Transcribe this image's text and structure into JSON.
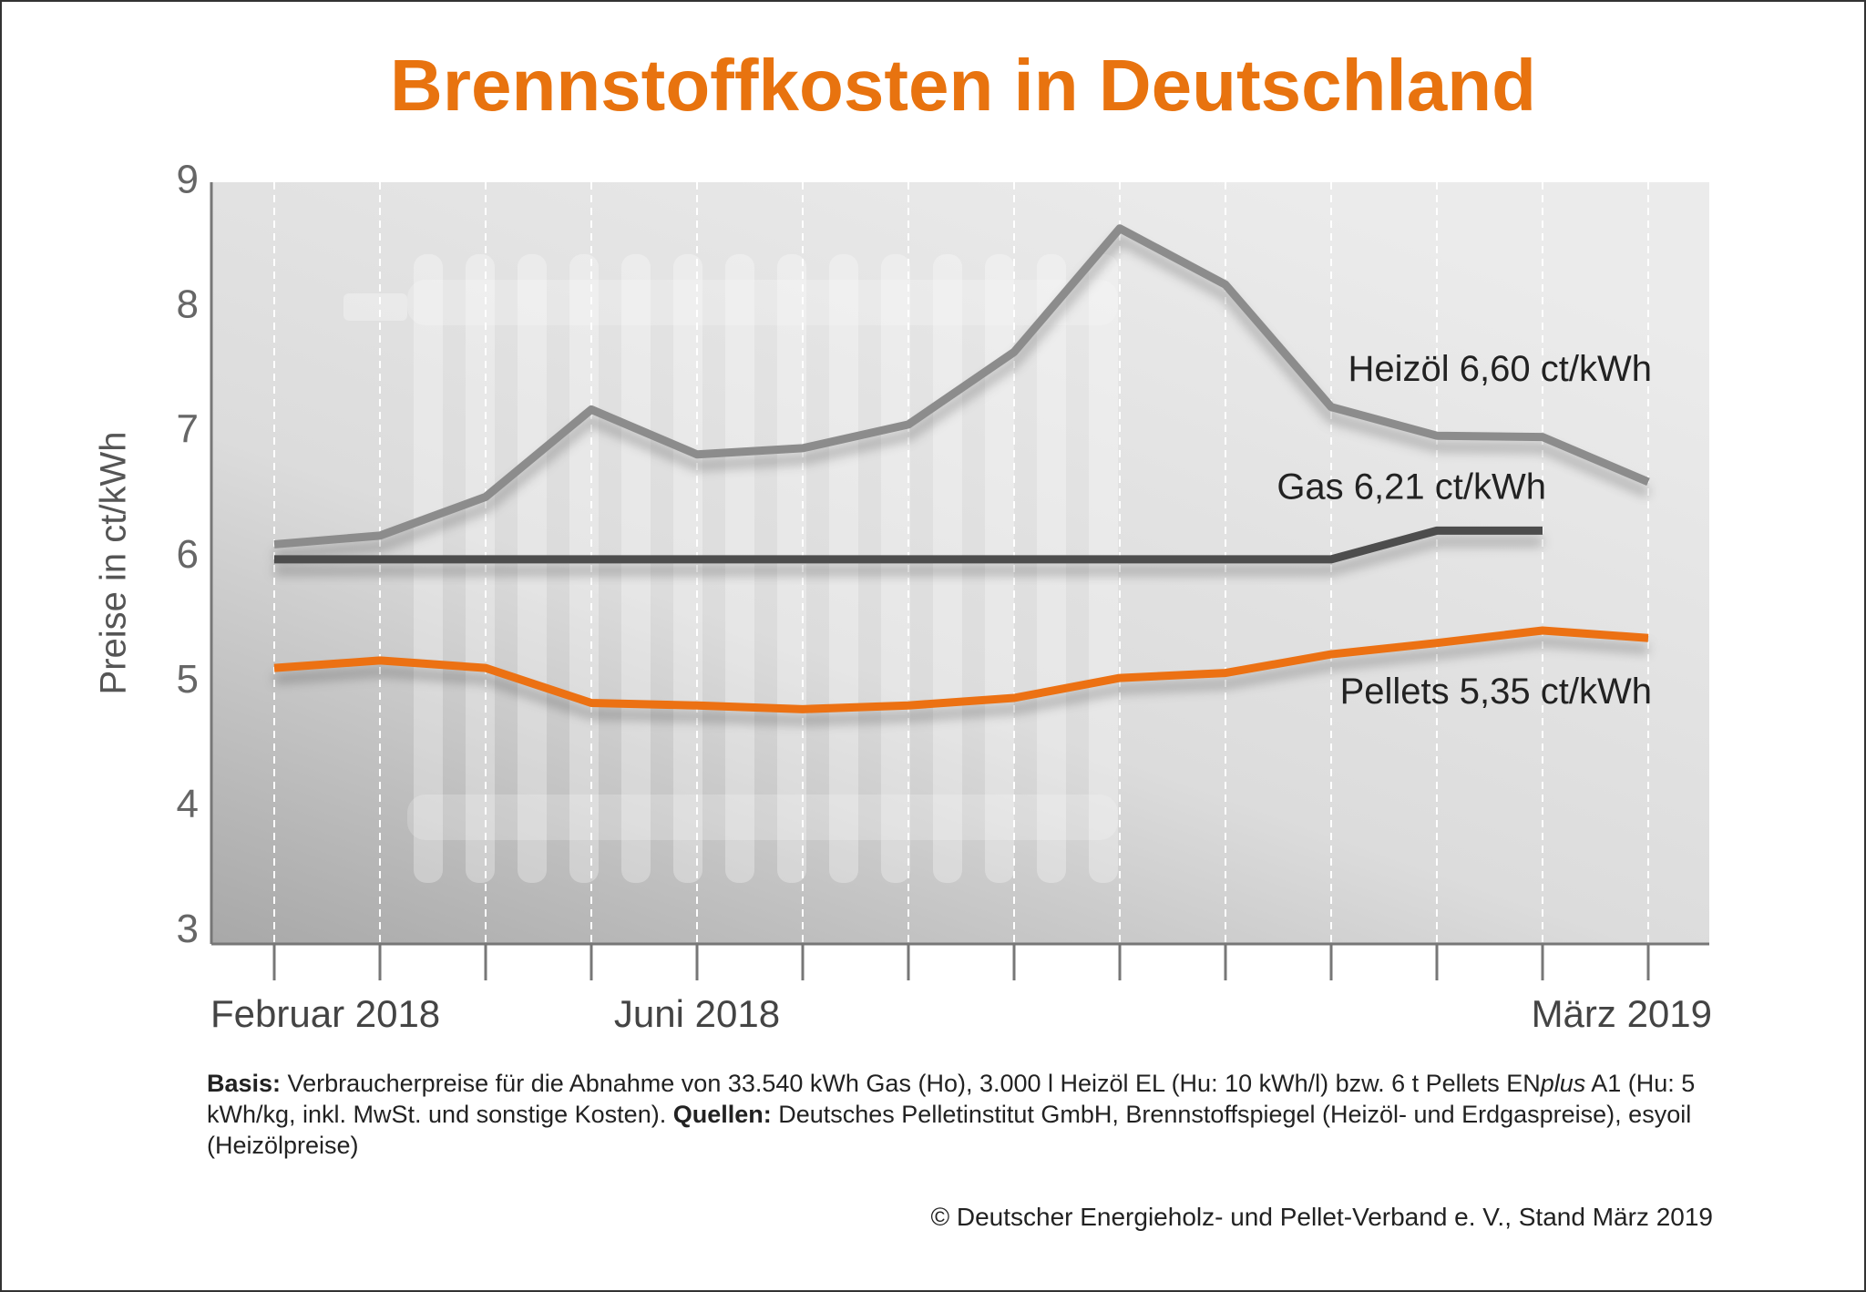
{
  "chart_data": {
    "type": "line",
    "title": "Brennstoffkosten in Deutschland",
    "y_label": "Preise in ct/kWh",
    "categories": [
      "Februar 2018",
      null,
      null,
      null,
      "Juni 2018",
      null,
      null,
      null,
      null,
      null,
      null,
      null,
      null,
      "März 2019"
    ],
    "series": [
      {
        "name": "Heizöl",
        "color": "#8c8c8c",
        "values": [
          6.1,
          6.17,
          6.48,
          7.18,
          6.82,
          6.87,
          7.06,
          7.64,
          8.63,
          8.18,
          7.2,
          6.97,
          6.96,
          6.6
        ],
        "value_labels": [
          null,
          null,
          null,
          null,
          null,
          null,
          null,
          null,
          null,
          null,
          null,
          null,
          null,
          "6,60 ct/kWh"
        ]
      },
      {
        "name": "Gas",
        "color": "#4d4d4d",
        "values": [
          5.98,
          5.98,
          5.98,
          5.98,
          5.98,
          5.98,
          5.98,
          5.98,
          5.98,
          5.98,
          5.98,
          6.21,
          6.21,
          null
        ],
        "value_labels": [
          null,
          null,
          null,
          null,
          null,
          null,
          null,
          null,
          null,
          null,
          null,
          null,
          "6,21 ct/kWh",
          null
        ]
      },
      {
        "name": "Pellets",
        "color": "#ec7113",
        "values": [
          5.11,
          5.17,
          5.11,
          4.83,
          4.81,
          4.78,
          4.81,
          4.87,
          5.03,
          5.07,
          5.22,
          5.31,
          5.41,
          5.35
        ],
        "value_labels": [
          null,
          null,
          null,
          null,
          null,
          null,
          null,
          null,
          null,
          null,
          null,
          null,
          null,
          "5,35 ct/kWh"
        ]
      }
    ],
    "ylim": [
      2.9,
      9
    ],
    "yticks": [
      3,
      4,
      5,
      6,
      7,
      8,
      9
    ],
    "grid": true
  },
  "footnote": {
    "basis_label": "Basis:",
    "basis_text": " Verbraucherpreise für die Abnahme von 33.540 kWh Gas (Ho), 3.000 l Heizöl EL (Hu: 10 kWh/l) bzw. 6 t Pellets EN",
    "plus": "plus",
    "basis_text_2": " A1 (Hu: 5 kWh/kg, inkl. MwSt. und sonstige Kosten). ",
    "sources_label": "Quellen:",
    "sources_text": " Deutsches Pelletinstitut GmbH, Brennstoffspiegel (Heizöl- und Erdgaspreise), esyoil (Heizölpreise)"
  },
  "copyright": "© Deutscher Energieholz- und Pellet-Verband e. V., Stand März 2019"
}
